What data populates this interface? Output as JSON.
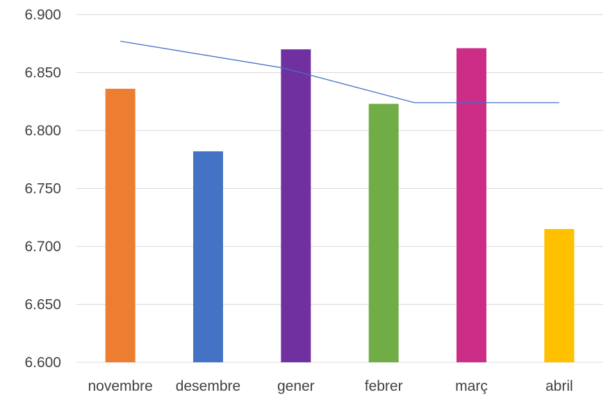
{
  "chart_data": {
    "type": "bar",
    "categories": [
      "novembre",
      "desembre",
      "gener",
      "febrer",
      "març",
      "abril"
    ],
    "values": [
      6.836,
      6.782,
      6.87,
      6.823,
      6.871,
      6.715
    ],
    "bar_colors": [
      "#ed7d31",
      "#4472c4",
      "#7030a0",
      "#70ad47",
      "#cc2d87",
      "#ffc000"
    ],
    "line_series": {
      "values": [
        6.877,
        6.854,
        6.824,
        6.824
      ],
      "category_positions": [
        0,
        1.85,
        3.35,
        5
      ],
      "color": "#4472c4"
    },
    "ylim": [
      6.6,
      6.9
    ],
    "yticks": [
      6.6,
      6.65,
      6.7,
      6.75,
      6.8,
      6.85,
      6.9
    ],
    "ytick_labels": [
      "6.600",
      "6.650",
      "6.700",
      "6.750",
      "6.800",
      "6.850",
      "6.900"
    ],
    "grid": true,
    "legend": "none",
    "title": "",
    "xlabel": "",
    "ylabel": ""
  }
}
